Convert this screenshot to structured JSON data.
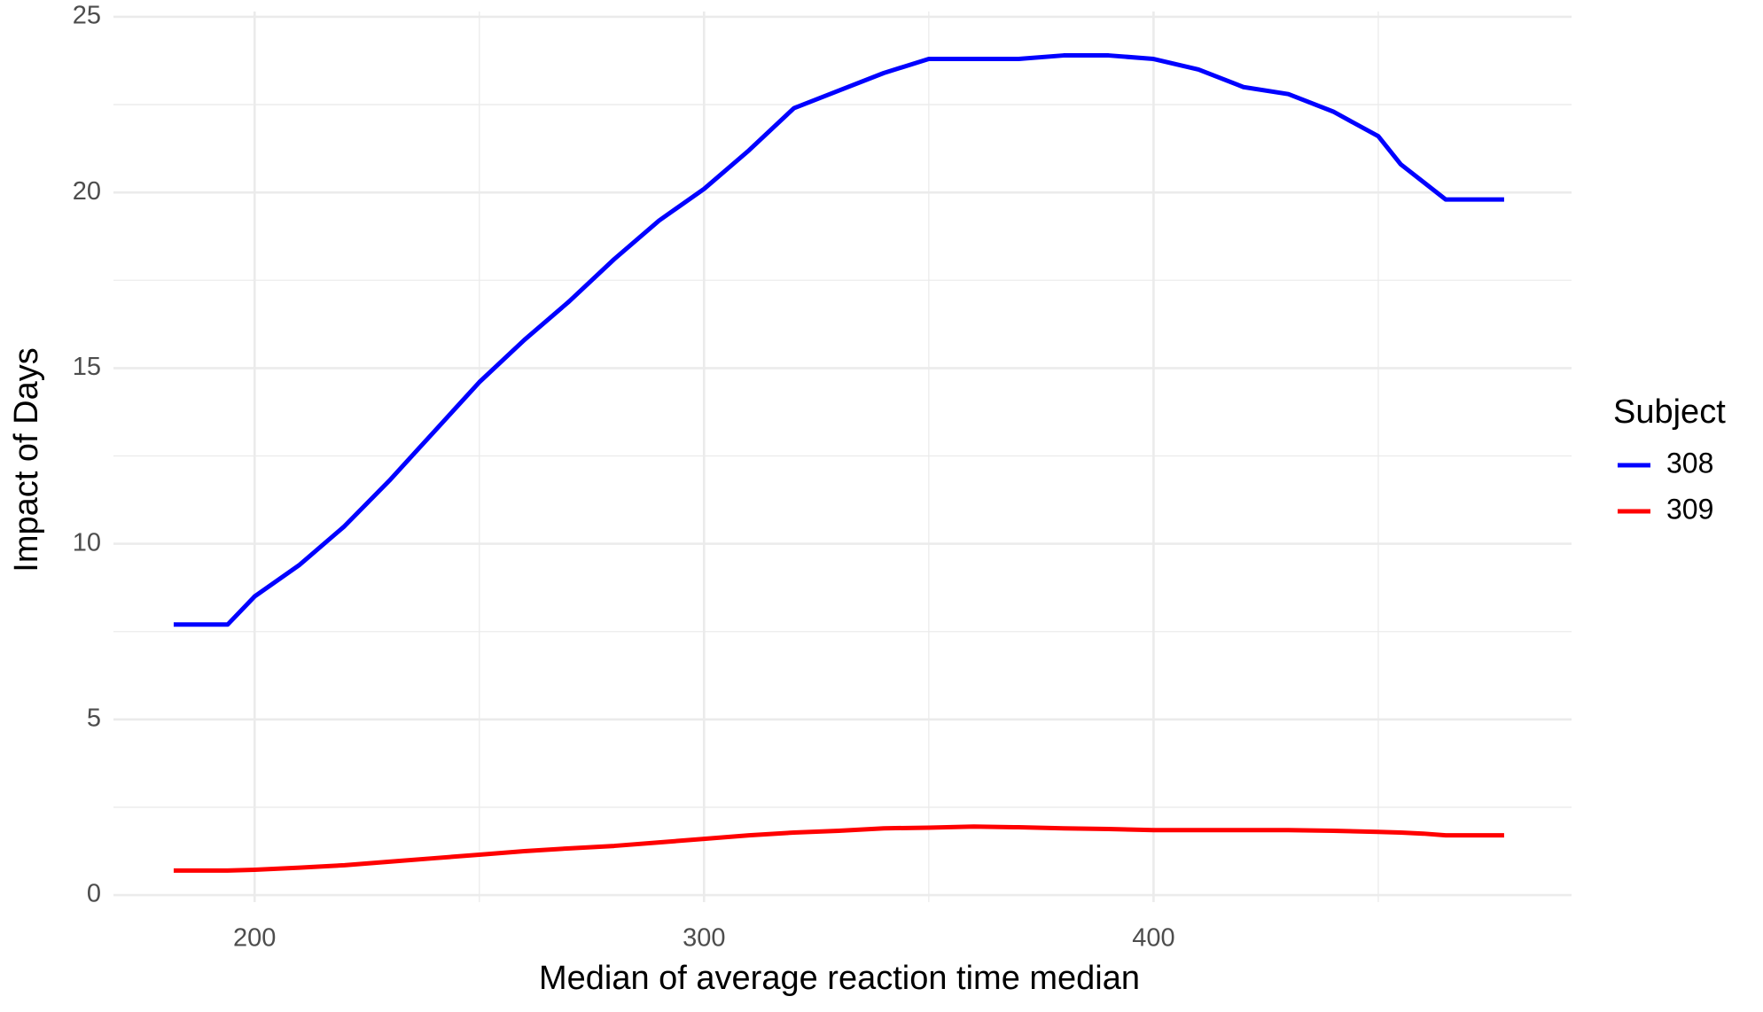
{
  "chart_data": {
    "type": "line",
    "x_label": "Median of average reaction time median",
    "y_label": "Impact of Days",
    "legend_title": "Subject",
    "legend_position": "right",
    "grid": true,
    "x": [
      182,
      194,
      200,
      210,
      220,
      230,
      240,
      250,
      260,
      270,
      280,
      290,
      300,
      310,
      320,
      330,
      340,
      350,
      360,
      370,
      380,
      390,
      400,
      410,
      420,
      430,
      440,
      450,
      455,
      460,
      465,
      478
    ],
    "series": [
      {
        "name": "308",
        "color": "#0000ff",
        "values": [
          7.7,
          7.7,
          8.5,
          9.4,
          10.5,
          11.8,
          13.2,
          14.6,
          15.8,
          16.9,
          18.1,
          19.2,
          20.1,
          21.2,
          22.4,
          22.9,
          23.4,
          23.8,
          23.8,
          23.8,
          23.9,
          23.9,
          23.8,
          23.5,
          23.0,
          22.8,
          22.3,
          21.6,
          20.8,
          20.3,
          19.8,
          19.8
        ]
      },
      {
        "name": "309",
        "color": "#ff0000",
        "values": [
          0.7,
          0.7,
          0.72,
          0.78,
          0.85,
          0.95,
          1.05,
          1.15,
          1.25,
          1.33,
          1.4,
          1.5,
          1.6,
          1.7,
          1.78,
          1.83,
          1.9,
          1.92,
          1.95,
          1.93,
          1.9,
          1.88,
          1.85,
          1.85,
          1.85,
          1.85,
          1.83,
          1.8,
          1.78,
          1.75,
          1.7,
          1.7
        ]
      }
    ],
    "xlim": [
      168.6,
      493
    ],
    "ylim": [
      -0.2,
      25.15
    ],
    "xticks": [
      200,
      300,
      400
    ],
    "yticks": [
      0,
      5,
      10,
      15,
      20,
      25
    ],
    "x_minor_ticks": [
      250,
      350,
      450
    ],
    "y_minor_ticks": [
      2.5,
      7.5,
      12.5,
      17.5,
      22.5
    ]
  }
}
